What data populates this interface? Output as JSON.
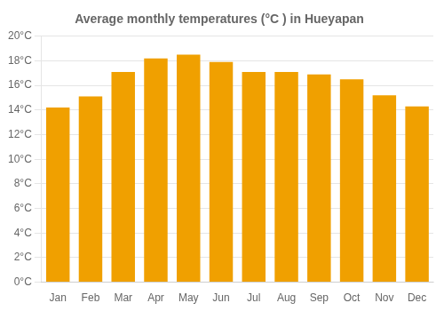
{
  "chart_data": {
    "type": "bar",
    "title": "Average monthly temperatures (°C ) in Hueyapan",
    "categories": [
      "Jan",
      "Feb",
      "Mar",
      "Apr",
      "May",
      "Jun",
      "Jul",
      "Aug",
      "Sep",
      "Oct",
      "Nov",
      "Dec"
    ],
    "values": [
      14.2,
      15.1,
      17.1,
      18.2,
      18.5,
      17.9,
      17.1,
      17.1,
      16.9,
      16.5,
      15.2,
      14.3
    ],
    "color": "#F0A000",
    "ylim": [
      0,
      20
    ],
    "yticks": [
      {
        "value": 0,
        "label": "0°C"
      },
      {
        "value": 2,
        "label": "2°C"
      },
      {
        "value": 4,
        "label": "4°C"
      },
      {
        "value": 6,
        "label": "6°C"
      },
      {
        "value": 8,
        "label": "8°C"
      },
      {
        "value": 10,
        "label": "10°C"
      },
      {
        "value": 12,
        "label": "12°C"
      },
      {
        "value": 14,
        "label": "14°C"
      },
      {
        "value": 16,
        "label": "16°C"
      },
      {
        "value": 18,
        "label": "18°C"
      },
      {
        "value": 20,
        "label": "20°C"
      }
    ],
    "grid": true
  }
}
